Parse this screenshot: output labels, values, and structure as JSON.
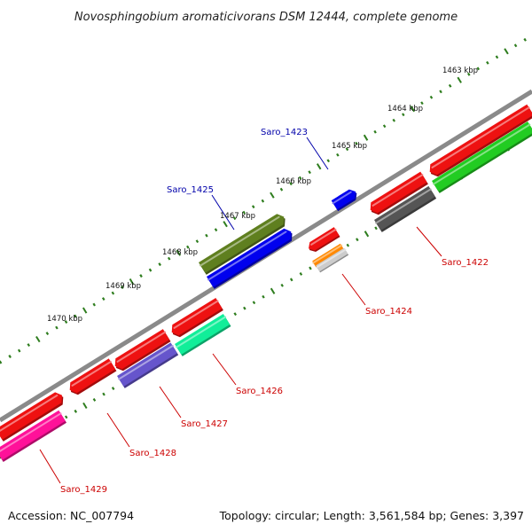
{
  "title": "Novosphingobium aromaticivorans DSM 12444, complete genome",
  "footer": {
    "accession": "Accession: NC_007794",
    "summary": "Topology: circular; Length: 3,561,584 bp; Genes: 3,397"
  },
  "kbp_labels": [
    "1463 kbp",
    "1464 kbp",
    "1465 kbp",
    "1466 kbp",
    "1467 kbp",
    "1468 kbp",
    "1469 kbp",
    "1470 kbp"
  ],
  "gene_labels": [
    "Saro_1423",
    "Saro_1425",
    "Saro_1422",
    "Saro_1424",
    "Saro_1426",
    "Saro_1427",
    "Saro_1428",
    "Saro_1429"
  ],
  "colors": {
    "backbone": "#888888",
    "tick": "#2e7d1e",
    "label_blue": "#0000aa",
    "label_red": "#cc0000",
    "red": "#ee1111",
    "blue": "#0000ee",
    "olive": "#5f7f1f",
    "green": "#22cc22",
    "gray": "#555555",
    "orange": "#ff8800",
    "lightgray": "#cccccc",
    "teal": "#11ee99",
    "purple": "#6655cc",
    "magenta": "#ff1199"
  }
}
